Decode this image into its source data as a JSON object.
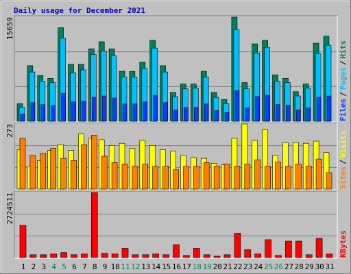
{
  "chart_data": [
    {
      "type": "bar",
      "title": "Daily usage for December 2021",
      "title_color": "#0000c0",
      "ylim": [
        0,
        15659
      ],
      "yticks": [
        15659
      ],
      "legend_separator": "/",
      "series": [
        {
          "name": "Hits",
          "color": "#00805c",
          "values": [
            2645,
            8358,
            6877,
            6454,
            14072,
            8570,
            8570,
            10897,
            11956,
            10897,
            7512,
            7512,
            8887,
            12167,
            8358,
            4338,
            5607,
            5607,
            7512,
            4338,
            3280,
            15659,
            5819,
            11638,
            12167,
            6983,
            6454,
            4444,
            5607,
            11744,
            12802
          ]
        },
        {
          "name": "Pages",
          "color": "#00c0ff",
          "values": [
            2116,
            7406,
            6031,
            5819,
            12485,
            7300,
            7723,
            10051,
            10580,
            9839,
            6665,
            6665,
            7935,
            11003,
            7406,
            3703,
            4867,
            4973,
            6665,
            3597,
            2645,
            13754,
            4867,
            10263,
            11109,
            6031,
            5819,
            3809,
            4973,
            10157,
            11426
          ]
        },
        {
          "name": "Files",
          "color": "#0040ff",
          "values": [
            1100,
            2800,
            2500,
            2400,
            4200,
            2900,
            3000,
            3600,
            3800,
            3500,
            2600,
            2600,
            2900,
            3900,
            2800,
            1700,
            2100,
            2100,
            2600,
            1600,
            1300,
            4600,
            2000,
            3700,
            3900,
            2500,
            2400,
            1700,
            2000,
            3600,
            3800
          ]
        }
      ]
    },
    {
      "type": "bar",
      "ylim": [
        0,
        273
      ],
      "yticks": [
        273
      ],
      "legend_separator": "/",
      "series": [
        {
          "name": "Visits",
          "color": "#ffff00",
          "values": [
            165,
            96,
            120,
            162,
            186,
            162,
            231,
            213,
            207,
            183,
            192,
            171,
            204,
            183,
            165,
            159,
            141,
            132,
            129,
            108,
            102,
            213,
            273,
            204,
            249,
            141,
            195,
            195,
            192,
            201,
            153
          ]
        },
        {
          "name": "Sites",
          "color": "#ff8000",
          "values": [
            213,
            141,
            150,
            171,
            129,
            120,
            186,
            225,
            138,
            111,
            105,
            96,
            105,
            96,
            96,
            81,
            96,
            96,
            111,
            96,
            105,
            96,
            105,
            123,
            96,
            114,
            96,
            105,
            96,
            126,
            69
          ]
        }
      ]
    },
    {
      "type": "bar",
      "ylim": [
        0,
        2724511
      ],
      "yticks": [
        2724511
      ],
      "categories": [
        "1",
        "2",
        "3",
        "4",
        "5",
        "6",
        "7",
        "8",
        "9",
        "10",
        "11",
        "12",
        "13",
        "14",
        "15",
        "16",
        "17",
        "18",
        "19",
        "20",
        "21",
        "22",
        "23",
        "24",
        "25",
        "26",
        "27",
        "28",
        "29",
        "30",
        "31"
      ],
      "category_colors": [
        "#000000",
        "#000000",
        "#000000",
        "#00805c",
        "#00805c",
        "#000000",
        "#000000",
        "#000000",
        "#000000",
        "#000000",
        "#00805c",
        "#00805c",
        "#000000",
        "#000000",
        "#000000",
        "#000000",
        "#000000",
        "#00805c",
        "#00805c",
        "#000000",
        "#000000",
        "#000000",
        "#000000",
        "#000000",
        "#00805c",
        "#00805c",
        "#000000",
        "#000000",
        "#000000",
        "#000000",
        "#000000"
      ],
      "series": [
        {
          "name": "KBytes",
          "color": "#ff0000",
          "values": [
            1347300,
            119760,
            119760,
            149700,
            209580,
            119760,
            149700,
            2724511,
            179640,
            149700,
            389220,
            119760,
            119760,
            149700,
            119760,
            538920,
            89820,
            389220,
            119760,
            59880,
            119760,
            1017960,
            329340,
            149700,
            748500,
            89820,
            688620,
            688620,
            119760,
            808380,
            149700
          ]
        }
      ]
    }
  ]
}
